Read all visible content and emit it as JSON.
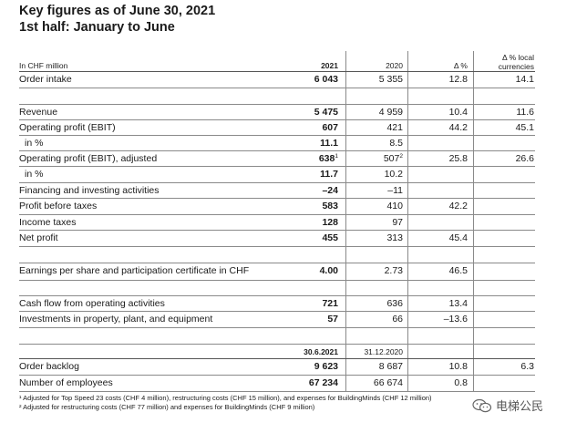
{
  "title": {
    "line1": "Key figures as of June 30, 2021",
    "line2": "1st half: January to June"
  },
  "header": {
    "label": "In CHF million",
    "col1": "2021",
    "col2": "2020",
    "col3": "Δ %",
    "col4_line1": "Δ % local",
    "col4_line2": "currencies"
  },
  "rows": [
    {
      "label": "Order intake",
      "c1": "6 043",
      "c2": "5 355",
      "c3": "12.8",
      "c4": "14.1"
    },
    {
      "label": "Revenue",
      "c1": "5 475",
      "c2": "4 959",
      "c3": "10.4",
      "c4": "11.6"
    },
    {
      "label": "Operating profit (EBIT)",
      "c1": "607",
      "c2": "421",
      "c3": "44.2",
      "c4": "45.1"
    },
    {
      "label": "in %",
      "c1": "11.1",
      "c2": "8.5",
      "c3": "",
      "c4": ""
    },
    {
      "label": "Operating profit (EBIT), adjusted",
      "c1": "638",
      "c1_sup": "1",
      "c2": "507",
      "c2_sup": "2",
      "c3": "25.8",
      "c4": "26.6"
    },
    {
      "label": "in %",
      "c1": "11.7",
      "c2": "10.2",
      "c3": "",
      "c4": ""
    },
    {
      "label": "Financing and investing activities",
      "c1": "–24",
      "c2": "–11",
      "c3": "",
      "c4": ""
    },
    {
      "label": "Profit before taxes",
      "c1": "583",
      "c2": "410",
      "c3": "42.2",
      "c4": ""
    },
    {
      "label": "Income taxes",
      "c1": "128",
      "c2": "97",
      "c3": "",
      "c4": ""
    },
    {
      "label": "Net profit",
      "c1": "455",
      "c2": "313",
      "c3": "45.4",
      "c4": ""
    },
    {
      "label": "Earnings per share and participation certificate in CHF",
      "c1": "4.00",
      "c2": "2.73",
      "c3": "46.5",
      "c4": ""
    },
    {
      "label": "Cash flow from operating activities",
      "c1": "721",
      "c2": "636",
      "c3": "13.4",
      "c4": ""
    },
    {
      "label": "Investments in property, plant, and equipment",
      "c1": "57",
      "c2": "66",
      "c3": "–13.6",
      "c4": ""
    },
    {
      "label": "Order backlog",
      "c1": "9 623",
      "c2": "8 687",
      "c3": "10.8",
      "c4": "6.3"
    },
    {
      "label": "Number of employees",
      "c1": "67 234",
      "c2": "66 674",
      "c3": "0.8",
      "c4": ""
    }
  ],
  "date_header": {
    "col1": "30.6.2021",
    "col2": "31.12.2020"
  },
  "footnotes": {
    "f1": "¹ Adjusted for Top Speed 23 costs (CHF 4 million), restructuring costs (CHF 15 million), and expenses for BuildingMinds (CHF 12 million)",
    "f2": "² Adjusted for restructuring costs (CHF 77 million) and expenses for BuildingMinds (CHF 9 million)"
  },
  "watermark": {
    "text": "电梯公民",
    "icon": "wechat-icon"
  }
}
